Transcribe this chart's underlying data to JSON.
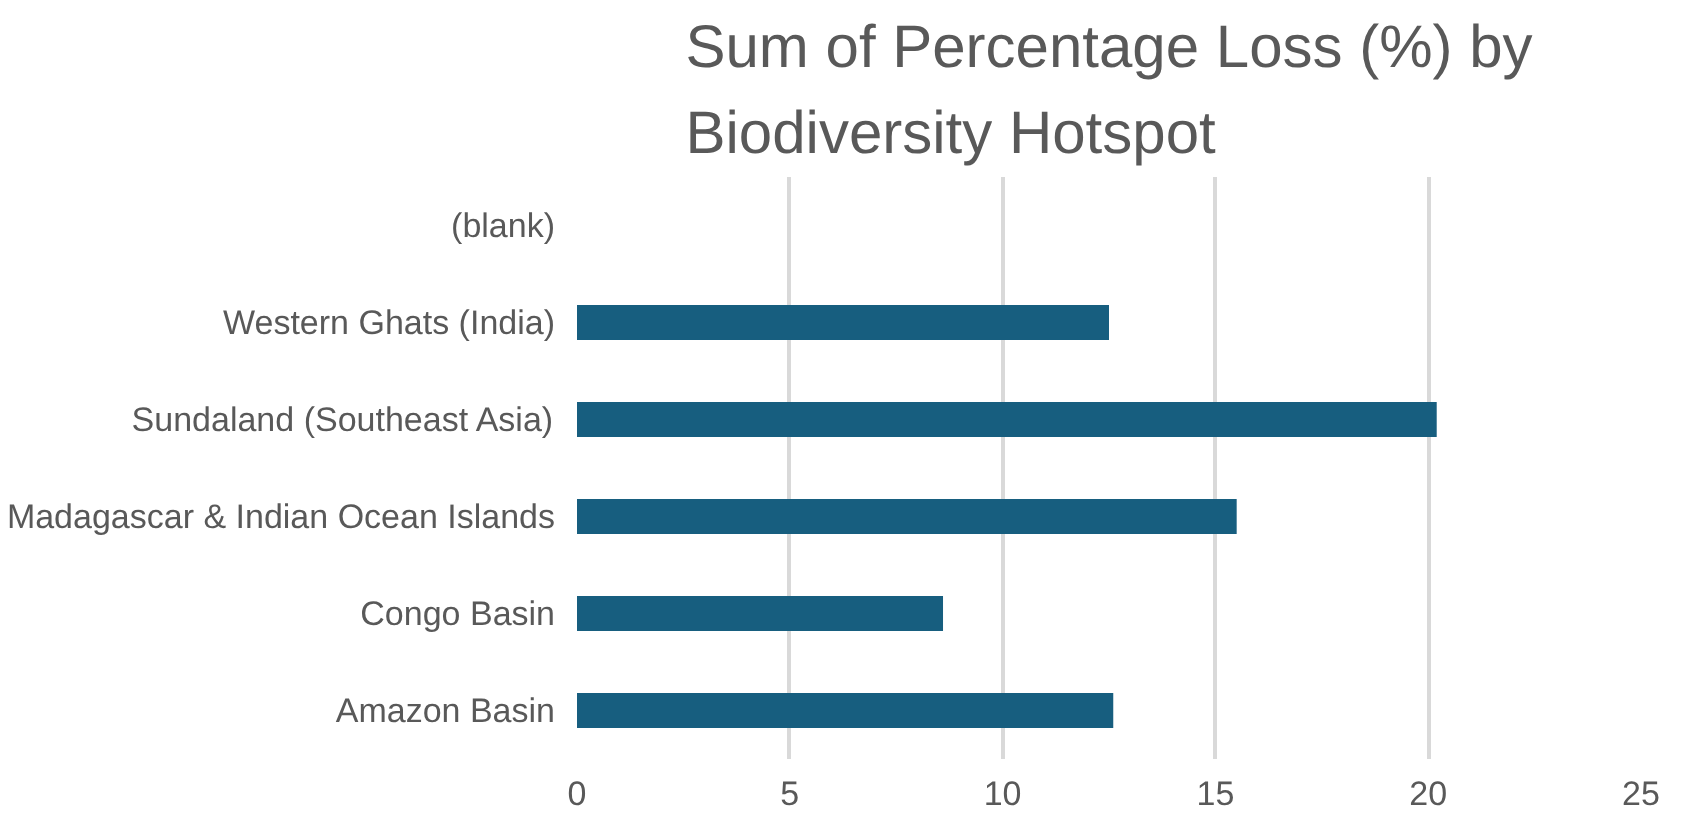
{
  "chart_data": {
    "type": "bar",
    "orientation": "horizontal",
    "title": "Sum of Percentage Loss (%) by\nBiodiversity Hotspot",
    "categories": [
      "(blank)",
      "Western Ghats (India)",
      "Sundaland (Southeast Asia)",
      "Madagascar & Indian Ocean Islands",
      "Congo Basin",
      "Amazon Basin"
    ],
    "values": [
      null,
      12.5,
      20.2,
      15.5,
      8.6,
      12.6
    ],
    "color": "#175e7f",
    "xlim": [
      0,
      25
    ],
    "xticks": [
      0,
      5,
      10,
      15,
      20,
      25
    ],
    "grid": "x"
  }
}
